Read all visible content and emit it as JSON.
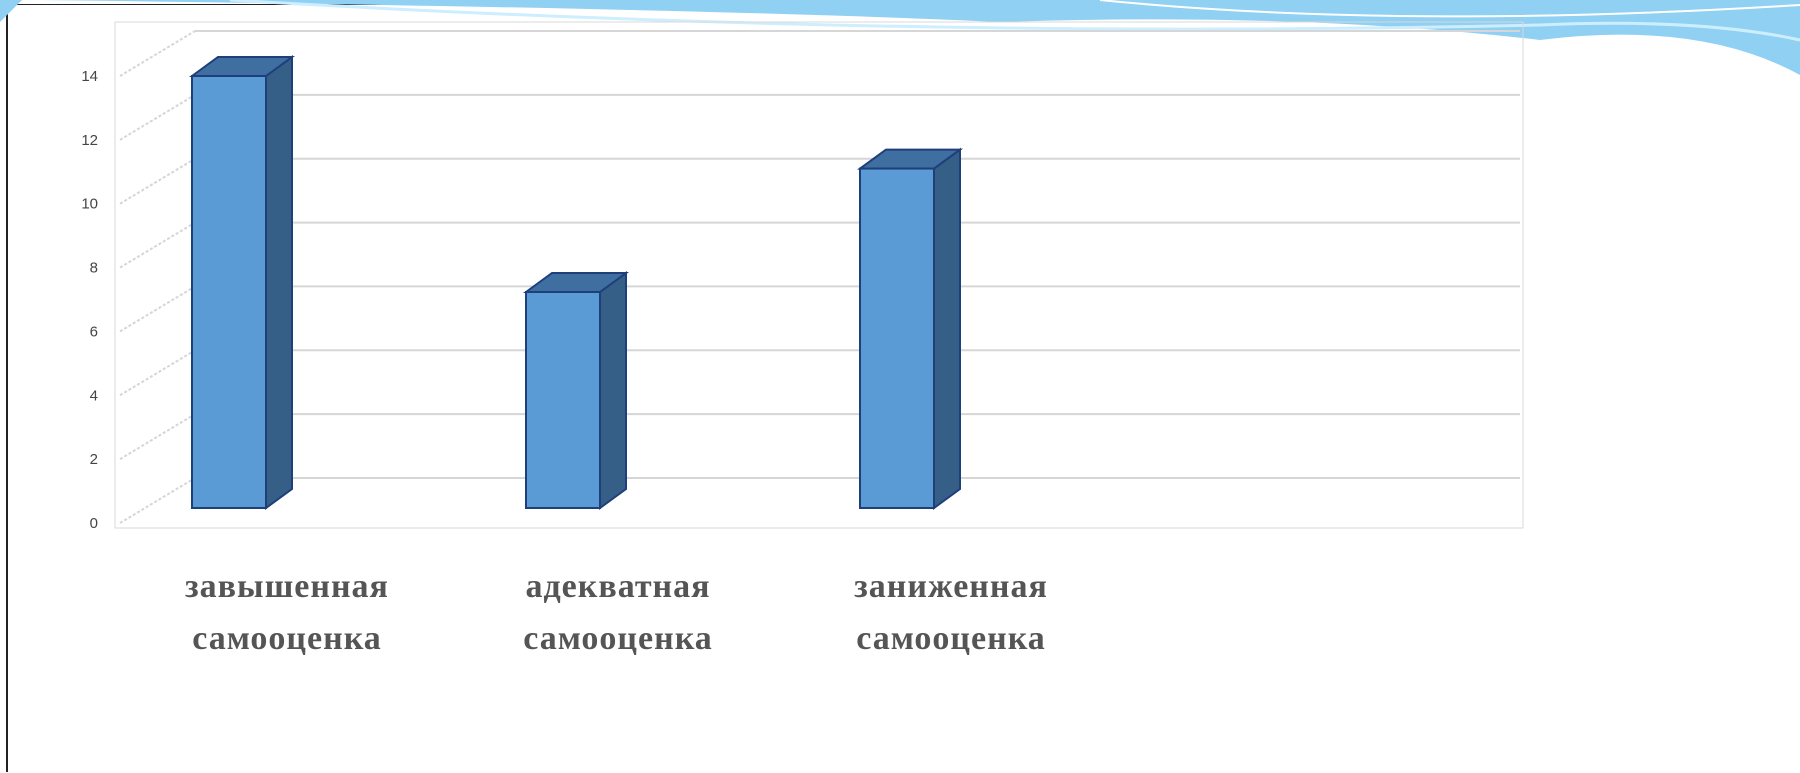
{
  "chart_data": {
    "type": "bar",
    "categories": [
      [
        "завышенная",
        "самооценка"
      ],
      [
        "адекватная",
        "самооценка"
      ],
      [
        "заниженная",
        "самооценка"
      ]
    ],
    "values": [
      14,
      7,
      11
    ],
    "yticks": [
      "0",
      "2",
      "4",
      "6",
      "8",
      "10",
      "12",
      "14"
    ],
    "ylim": [
      0,
      14
    ],
    "grid": true,
    "style": "3d-column",
    "colors": {
      "front": "#5b9bd5",
      "side": "#355f87",
      "top": "#3f6fa0",
      "outline": "#1f3f7a",
      "grid": "#d6d6d6"
    }
  }
}
